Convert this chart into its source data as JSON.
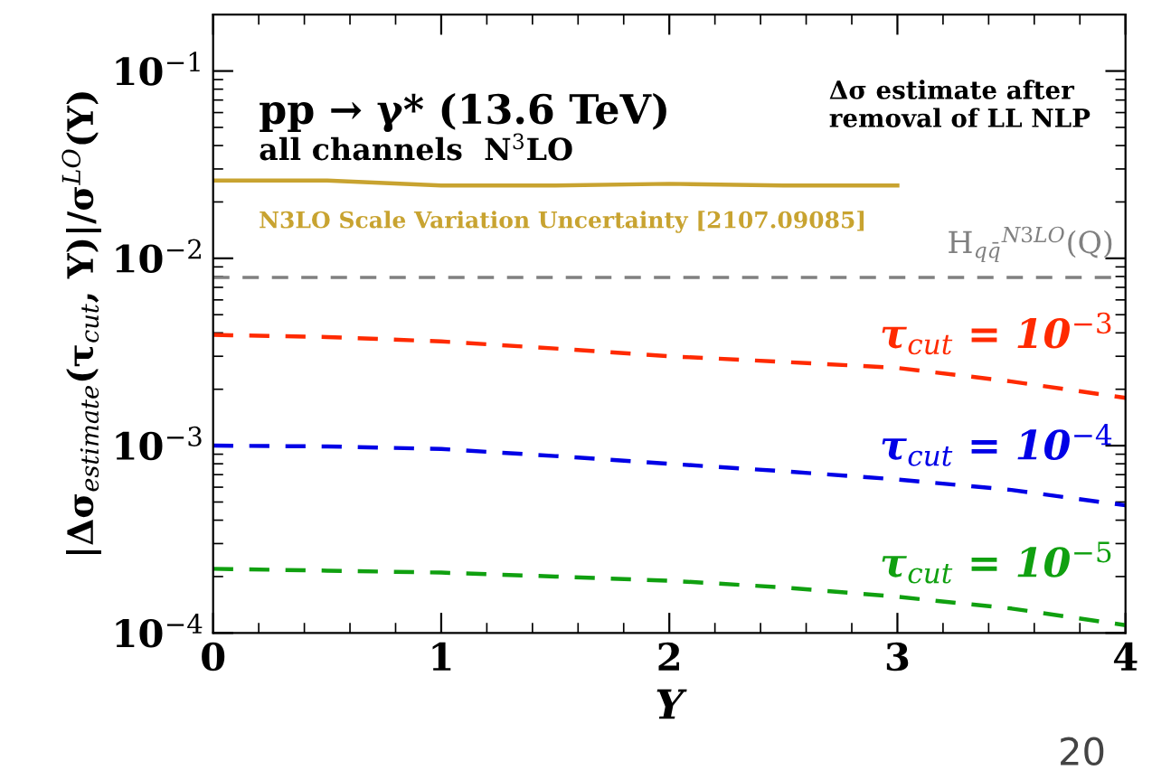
{
  "chart_data": {
    "type": "line",
    "xlabel": "Y",
    "ylabel": "|Δσ$_{estimate}$(τ$_{cut}$, Y)|/σ$^{LO}$(Y)",
    "x": [
      0,
      0.5,
      1,
      1.5,
      2,
      2.5,
      3,
      3.5,
      4
    ],
    "series": [
      {
        "name": "N3LO Scale Variation Uncertainty [2107.09085]",
        "color": "#c8a330",
        "line_style": "solid",
        "x": [
          0,
          0.5,
          1,
          1.5,
          2,
          2.5,
          3
        ],
        "values": [
          0.026,
          0.026,
          0.0245,
          0.0245,
          0.025,
          0.0245,
          0.0245
        ]
      },
      {
        "name": "τ$_{cut}$ = 10$^{−3}$",
        "color": "#ff2a00",
        "line_style": "dashed",
        "values": [
          0.0039,
          0.0038,
          0.0036,
          0.0033,
          0.003,
          0.0028,
          0.0026,
          0.0022,
          0.0018
        ]
      },
      {
        "name": "τ$_{cut}$ = 10$^{−4}$",
        "color": "#0000e6",
        "line_style": "dashed",
        "values": [
          0.001,
          0.00099,
          0.00096,
          0.00088,
          0.0008,
          0.00073,
          0.00066,
          0.00058,
          0.00048
        ]
      },
      {
        "name": "τ$_{cut}$ = 10$^{−5}$",
        "color": "#10a010",
        "line_style": "dashed",
        "values": [
          0.00022,
          0.000215,
          0.00021,
          0.0002,
          0.00019,
          0.000175,
          0.000156,
          0.000135,
          0.00011
        ]
      }
    ],
    "ref_lines": [
      {
        "axis": "y",
        "value": 0.0079,
        "label": "H$_{qq̄}$$^{N3LO}$(Q)",
        "color": "#808080",
        "line_style": "dashed"
      }
    ],
    "annotations": [
      "pp → γ* (13.6 TeV)",
      "all channels  N$^{3}$LO",
      "Δσ estimate after\nremoval of LL NLP",
      "20"
    ],
    "log": "y",
    "xlim": [
      0,
      4
    ],
    "ylim": [
      0.0001,
      0.2
    ],
    "xticks": [
      0,
      1,
      2,
      3,
      4
    ],
    "yticks": [
      {
        "value": 0.0001,
        "label": "10$^{−4}$"
      },
      {
        "value": 0.001,
        "label": "10$^{−3}$"
      },
      {
        "value": 0.01,
        "label": "10$^{−2}$"
      },
      {
        "value": 0.1,
        "label": "10$^{−1}$"
      }
    ],
    "grid": false,
    "legend": false,
    "marker": "none"
  }
}
